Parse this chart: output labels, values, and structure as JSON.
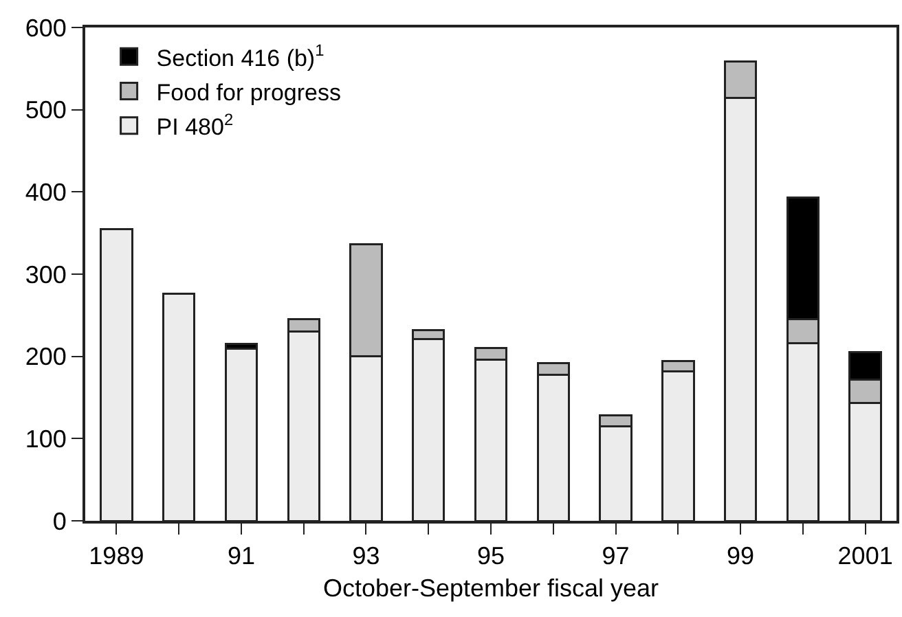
{
  "chart_data": {
    "type": "bar",
    "stacked": true,
    "xlabel": "October-September fiscal year",
    "categories": [
      "1989",
      null,
      "91",
      null,
      "93",
      null,
      "95",
      null,
      "97",
      null,
      "99",
      null,
      "2001"
    ],
    "series": [
      {
        "name": "PI 480$^{2}$",
        "color": "#ececec",
        "values": [
          355,
          276,
          209,
          230,
          200,
          221,
          196,
          178,
          115,
          182,
          514,
          216,
          143
        ]
      },
      {
        "name": "Food for progress",
        "color": "#bbbbbb",
        "values": [
          null,
          null,
          null,
          15,
          136,
          11,
          14,
          14,
          13,
          12,
          45,
          29,
          29
        ]
      },
      {
        "name": "Section 416 (b)$^{1}$",
        "color": "#000000",
        "values": [
          null,
          null,
          6,
          null,
          null,
          null,
          null,
          null,
          null,
          null,
          null,
          148,
          33
        ]
      }
    ],
    "ylim": [
      0,
      600
    ],
    "yticks": [
      0,
      100,
      200,
      300,
      400,
      500,
      600
    ],
    "grid": false,
    "legend": "top left"
  }
}
